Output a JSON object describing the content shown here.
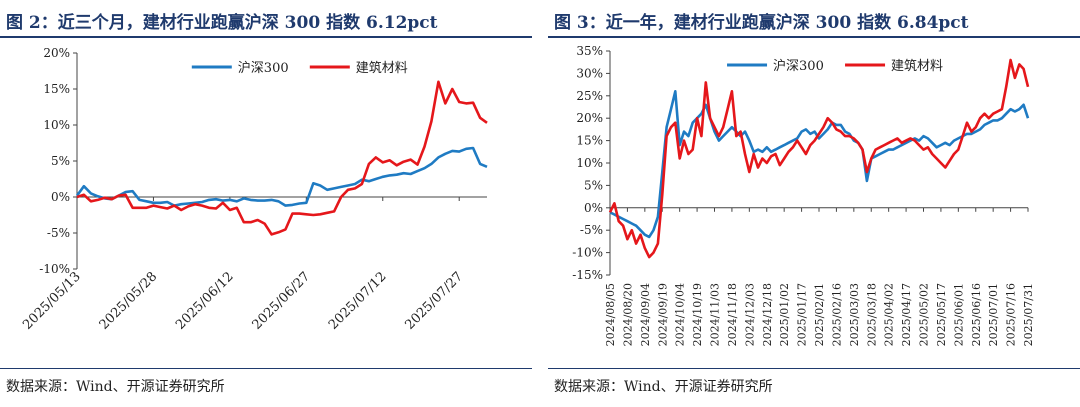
{
  "charts": [
    {
      "title": "图 2：近三个月，建材行业跑赢沪深 300 指数 6.12pct",
      "source": "数据来源：Wind、开源证券研究所",
      "chart_data": {
        "type": "line",
        "yticks": [
          "20%",
          "15%",
          "10%",
          "5%",
          "0%",
          "-5%",
          "-10%"
        ],
        "ylim": [
          -10,
          20
        ],
        "xticks": [
          "2025/05/13",
          "2025/05/28",
          "2025/06/12",
          "2025/06/27",
          "2025/07/12",
          "2025/07/27"
        ],
        "xtick_index": [
          0,
          11,
          22,
          33,
          44,
          55
        ],
        "n_points": 60,
        "legend_position": "top-center",
        "series": [
          {
            "name": "沪深300",
            "color": "#1f7bc3",
            "values": [
              0.2,
              1.5,
              0.5,
              0.1,
              -0.2,
              -0.3,
              0.2,
              0.7,
              0.8,
              -0.4,
              -0.6,
              -0.8,
              -0.8,
              -0.7,
              -1.2,
              -1.0,
              -0.9,
              -0.8,
              -0.7,
              -0.4,
              -0.3,
              -0.5,
              -0.4,
              -0.6,
              -0.2,
              -0.4,
              -0.5,
              -0.5,
              -0.4,
              -0.6,
              -1.2,
              -1.1,
              -0.9,
              -0.8,
              1.9,
              1.6,
              1.0,
              1.2,
              1.4,
              1.6,
              1.8,
              2.4,
              2.2,
              2.5,
              2.8,
              3.0,
              3.1,
              3.3,
              3.2,
              3.6,
              4.0,
              4.6,
              5.5,
              6.0,
              6.4,
              6.3,
              6.7,
              6.8,
              4.6,
              4.2
            ]
          },
          {
            "name": "建筑材料",
            "color": "#e5171b",
            "values": [
              0.0,
              0.3,
              -0.6,
              -0.4,
              -0.1,
              -0.3,
              0.2,
              0.3,
              -1.5,
              -1.5,
              -1.5,
              -1.2,
              -1.4,
              -1.6,
              -1.2,
              -1.8,
              -1.3,
              -1.0,
              -1.2,
              -1.5,
              -1.6,
              -0.8,
              -1.8,
              -1.5,
              -3.5,
              -3.5,
              -3.2,
              -3.7,
              -5.2,
              -4.9,
              -4.5,
              -2.3,
              -2.3,
              -2.4,
              -2.5,
              -2.4,
              -2.2,
              -2.0,
              0.0,
              1.0,
              1.2,
              1.8,
              4.6,
              5.5,
              4.8,
              5.1,
              4.4,
              4.9,
              5.2,
              4.5,
              7.0,
              10.5,
              16.0,
              13.0,
              15.0,
              13.2,
              13.0,
              13.1,
              11.0,
              10.3
            ]
          }
        ]
      }
    },
    {
      "title": "图 3：近一年，建材行业跑赢沪深 300 指数 6.84pct",
      "source": "数据来源：Wind、开源证券研究所",
      "chart_data": {
        "type": "line",
        "yticks": [
          "35%",
          "30%",
          "25%",
          "20%",
          "15%",
          "10%",
          "5%",
          "0%",
          "-5%",
          "-10%",
          "-15%"
        ],
        "ylim": [
          -15,
          35
        ],
        "xticks": [
          "2024/08/05",
          "2024/08/20",
          "2024/09/04",
          "2024/09/19",
          "2024/10/04",
          "2024/10/19",
          "2024/11/03",
          "2024/11/18",
          "2024/12/03",
          "2024/12/18",
          "2025/01/02",
          "2025/01/17",
          "2025/02/01",
          "2025/02/16",
          "2025/03/03",
          "2025/03/18",
          "2025/04/02",
          "2025/04/17",
          "2025/05/02",
          "2025/05/17",
          "2025/06/01",
          "2025/06/16",
          "2025/07/01",
          "2025/07/16",
          "2025/07/31"
        ],
        "n_points": 97,
        "legend_position": "top-center",
        "series": [
          {
            "name": "沪深300",
            "color": "#1f7bc3",
            "values": [
              -1,
              -1.5,
              -2,
              -2.5,
              -3,
              -3.5,
              -4,
              -5,
              -6,
              -6.5,
              -5,
              -2,
              8,
              18,
              22,
              26,
              14,
              17,
              16,
              19,
              20,
              21,
              23,
              20,
              17,
              15,
              16,
              17,
              18,
              17,
              16,
              17,
              15,
              12.5,
              13,
              12.5,
              13.5,
              12.5,
              13,
              13.5,
              14,
              14.5,
              15,
              15.5,
              17,
              17.5,
              16.5,
              17,
              15.5,
              16.5,
              17.5,
              19,
              18.5,
              18.5,
              17,
              16.5,
              15,
              14.5,
              13,
              6,
              11,
              11.5,
              12,
              12.5,
              13,
              13,
              13.5,
              14,
              14.5,
              15,
              15.5,
              15,
              16,
              15.5,
              14.5,
              13.5,
              14,
              14.5,
              14,
              15,
              15.5,
              16,
              16.5,
              16.5,
              17,
              17.5,
              18.5,
              19,
              19.5,
              19.5,
              20,
              21,
              22,
              21.5,
              22,
              23,
              20
            ]
          },
          {
            "name": "建筑材料",
            "color": "#e5171b",
            "values": [
              -1,
              1,
              -3,
              -4,
              -7,
              -5,
              -8,
              -6,
              -9,
              -11,
              -10,
              -8,
              3,
              16,
              18,
              19,
              11,
              15,
              12,
              13,
              20,
              16,
              28,
              20,
              18,
              16,
              18,
              22,
              26,
              16,
              17,
              12,
              8,
              12,
              9,
              11,
              10,
              11.5,
              12,
              9.5,
              11,
              12.5,
              13.5,
              15,
              13.5,
              12,
              14,
              15,
              16.5,
              18,
              20,
              19,
              17.5,
              17,
              16,
              16,
              15.5,
              14.5,
              13,
              8,
              11,
              13,
              13.5,
              14,
              14.5,
              15,
              15.5,
              14.5,
              15,
              15.5,
              15,
              14,
              13,
              13.5,
              12,
              11,
              10,
              9,
              10.5,
              12,
              13,
              16,
              19,
              17,
              18,
              20,
              21,
              20,
              21,
              21.5,
              22,
              27,
              33,
              29,
              32,
              31,
              27
            ]
          }
        ]
      }
    }
  ]
}
